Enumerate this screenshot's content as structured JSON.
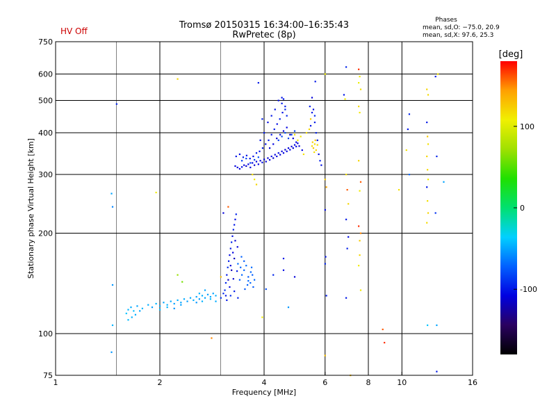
{
  "chart_data": {
    "type": "scatter",
    "title": "Tromsø 20150315 16:34:00–16:35:43",
    "subtitle": "RwPretec (8p)",
    "status_label": "HV Off",
    "stats": {
      "heading": "Phases",
      "line_o": "mean, sd,O: −75.0, 20.9",
      "line_x": "mean, sd,X:  97.6, 25.3"
    },
    "xlabel": "Frequency [MHz]",
    "ylabel": "Stationary phase Virtual Height [km]",
    "x_scale": "log2",
    "y_scale": "log",
    "xlim": [
      1,
      16
    ],
    "ylim": [
      75,
      750
    ],
    "x_ticks": [
      1,
      2,
      4,
      6,
      8,
      10,
      16
    ],
    "y_ticks": [
      75,
      100,
      200,
      300,
      400,
      500,
      600,
      750
    ],
    "grid": true,
    "colorbar": {
      "label": "[deg]",
      "range": [
        -180,
        180
      ],
      "ticks": [
        100,
        0,
        -100
      ],
      "colors": [
        "#000000",
        "#2a0060",
        "#0000e0",
        "#0060ff",
        "#00d0ff",
        "#00e070",
        "#20e000",
        "#a0e000",
        "#f0f000",
        "#ffa000",
        "#ff0000"
      ]
    },
    "points": [
      [
        1.5,
        488,
        -95
      ],
      [
        1.45,
        263,
        -50
      ],
      [
        1.46,
        240,
        -60
      ],
      [
        1.46,
        140,
        -55
      ],
      [
        1.46,
        106,
        -45
      ],
      [
        1.45,
        88,
        -55
      ],
      [
        1.6,
        115,
        -40
      ],
      [
        1.62,
        118,
        -45
      ],
      [
        1.65,
        120,
        -48
      ],
      [
        1.68,
        117,
        -42
      ],
      [
        1.72,
        121,
        -50
      ],
      [
        1.78,
        119,
        -44
      ],
      [
        1.85,
        122,
        -47
      ],
      [
        1.9,
        120,
        -52
      ],
      [
        1.95,
        123,
        -45
      ],
      [
        2.0,
        121,
        -48
      ],
      [
        2.05,
        124,
        -50
      ],
      [
        2.1,
        122,
        -46
      ],
      [
        2.15,
        125,
        -49
      ],
      [
        2.2,
        123,
        -51
      ],
      [
        2.25,
        126,
        -47
      ],
      [
        2.3,
        124,
        -50
      ],
      [
        2.35,
        127,
        -48
      ],
      [
        2.4,
        125,
        -52
      ],
      [
        2.45,
        128,
        -49
      ],
      [
        2.5,
        126,
        -47
      ],
      [
        2.55,
        129,
        -50
      ],
      [
        2.6,
        127,
        -53
      ],
      [
        2.65,
        130,
        -48
      ],
      [
        2.7,
        128,
        -50
      ],
      [
        2.75,
        131,
        -52
      ],
      [
        2.8,
        129,
        -49
      ],
      [
        2.85,
        132,
        -51
      ],
      [
        2.9,
        130,
        -47
      ],
      [
        2.55,
        124,
        -55
      ],
      [
        2.6,
        132,
        -45
      ],
      [
        2.65,
        125,
        -46
      ],
      [
        2.7,
        135,
        -50
      ],
      [
        2.8,
        127,
        -44
      ],
      [
        2.9,
        125,
        -48
      ],
      [
        2.0,
        118,
        -42
      ],
      [
        2.2,
        119,
        -55
      ],
      [
        2.3,
        122,
        -52
      ],
      [
        2.1,
        120,
        -45
      ],
      [
        1.7,
        114,
        -48
      ],
      [
        1.75,
        117,
        -50
      ],
      [
        1.62,
        110,
        -43
      ],
      [
        1.66,
        112,
        -46
      ],
      [
        2.25,
        580,
        120
      ],
      [
        1.95,
        265,
        110
      ],
      [
        2.82,
        97,
        150
      ],
      [
        3.05,
        230,
        -110
      ],
      [
        3.15,
        240,
        160
      ],
      [
        3.0,
        148,
        130
      ],
      [
        2.32,
        143,
        60
      ],
      [
        2.25,
        150,
        70
      ],
      [
        3.08,
        135,
        -90
      ],
      [
        3.1,
        142,
        -95
      ],
      [
        3.12,
        150,
        -100
      ],
      [
        3.14,
        158,
        -92
      ],
      [
        3.16,
        165,
        -98
      ],
      [
        3.18,
        172,
        -105
      ],
      [
        3.2,
        180,
        -100
      ],
      [
        3.22,
        188,
        -95
      ],
      [
        3.24,
        196,
        -102
      ],
      [
        3.26,
        205,
        -98
      ],
      [
        3.28,
        212,
        -100
      ],
      [
        3.3,
        220,
        -104
      ],
      [
        3.32,
        228,
        -96
      ],
      [
        3.2,
        160,
        -110
      ],
      [
        3.25,
        175,
        -108
      ],
      [
        3.3,
        190,
        -112
      ],
      [
        3.15,
        145,
        -115
      ],
      [
        3.22,
        155,
        -120
      ],
      [
        3.28,
        168,
        -118
      ],
      [
        3.35,
        182,
        -110
      ],
      [
        3.1,
        130,
        -100
      ],
      [
        3.18,
        138,
        -105
      ],
      [
        3.26,
        146,
        -112
      ],
      [
        3.34,
        154,
        -100
      ],
      [
        3.4,
        145,
        -75
      ],
      [
        3.45,
        150,
        -70
      ],
      [
        3.5,
        155,
        -72
      ],
      [
        3.55,
        160,
        -68
      ],
      [
        3.6,
        148,
        -74
      ],
      [
        3.65,
        142,
        -70
      ],
      [
        3.7,
        150,
        -73
      ],
      [
        3.75,
        145,
        -69
      ],
      [
        3.42,
        158,
        -71
      ],
      [
        3.5,
        165,
        -75
      ],
      [
        3.58,
        140,
        -72
      ],
      [
        3.66,
        153,
        -70
      ],
      [
        3.72,
        138,
        -74
      ],
      [
        3.36,
        162,
        -68
      ],
      [
        3.44,
        170,
        -72
      ],
      [
        3.52,
        136,
        -75
      ],
      [
        3.6,
        144,
        -70
      ],
      [
        3.68,
        158,
        -68
      ],
      [
        3.0,
        128,
        -90
      ],
      [
        3.05,
        132,
        -95
      ],
      [
        3.12,
        126,
        -100
      ],
      [
        3.2,
        130,
        -92
      ],
      [
        3.28,
        134,
        -98
      ],
      [
        3.36,
        128,
        -96
      ],
      [
        3.3,
        318,
        -110
      ],
      [
        3.35,
        315,
        -108
      ],
      [
        3.4,
        312,
        -112
      ],
      [
        3.45,
        316,
        -105
      ],
      [
        3.5,
        320,
        -110
      ],
      [
        3.55,
        318,
        -114
      ],
      [
        3.6,
        322,
        -108
      ],
      [
        3.65,
        315,
        -110
      ],
      [
        3.7,
        325,
        -106
      ],
      [
        3.75,
        320,
        -112
      ],
      [
        3.8,
        328,
        -110
      ],
      [
        3.85,
        322,
        -108
      ],
      [
        3.9,
        330,
        -112
      ],
      [
        3.95,
        326,
        -105
      ],
      [
        4.0,
        333,
        -110
      ],
      [
        4.05,
        328,
        -108
      ],
      [
        4.1,
        336,
        -112
      ],
      [
        4.15,
        332,
        -110
      ],
      [
        4.2,
        340,
        -106
      ],
      [
        4.25,
        336,
        -112
      ],
      [
        4.3,
        344,
        -108
      ],
      [
        4.35,
        340,
        -110
      ],
      [
        4.4,
        348,
        -105
      ],
      [
        4.45,
        344,
        -112
      ],
      [
        4.5,
        352,
        -110
      ],
      [
        4.55,
        348,
        -108
      ],
      [
        4.6,
        356,
        -112
      ],
      [
        4.65,
        352,
        -106
      ],
      [
        4.7,
        360,
        -110
      ],
      [
        4.75,
        356,
        -108
      ],
      [
        4.8,
        364,
        -112
      ],
      [
        4.85,
        360,
        -110
      ],
      [
        4.9,
        368,
        -105
      ],
      [
        4.95,
        364,
        -108
      ],
      [
        5.0,
        372,
        -112
      ],
      [
        3.32,
        340,
        -100
      ],
      [
        3.4,
        345,
        -105
      ],
      [
        3.48,
        338,
        -98
      ],
      [
        3.56,
        342,
        -102
      ],
      [
        3.64,
        335,
        -100
      ],
      [
        3.72,
        340,
        -104
      ],
      [
        3.8,
        348,
        -98
      ],
      [
        3.88,
        352,
        -102
      ],
      [
        3.96,
        360,
        -100
      ],
      [
        4.04,
        370,
        -104
      ],
      [
        4.12,
        380,
        -98
      ],
      [
        4.2,
        395,
        -102
      ],
      [
        4.28,
        410,
        -100
      ],
      [
        4.36,
        425,
        -104
      ],
      [
        4.44,
        440,
        -98
      ],
      [
        4.52,
        460,
        -102
      ],
      [
        4.6,
        480,
        -100
      ],
      [
        4.4,
        500,
        -104
      ],
      [
        4.5,
        490,
        -98
      ],
      [
        4.3,
        470,
        -102
      ],
      [
        4.2,
        450,
        -100
      ],
      [
        4.1,
        430,
        -104
      ],
      [
        4.0,
        400,
        -98
      ],
      [
        3.9,
        380,
        -102
      ],
      [
        4.15,
        360,
        -110
      ],
      [
        4.25,
        370,
        -108
      ],
      [
        4.35,
        385,
        -112
      ],
      [
        4.45,
        395,
        -105
      ],
      [
        4.55,
        405,
        -110
      ],
      [
        4.65,
        415,
        -108
      ],
      [
        4.75,
        395,
        -112
      ],
      [
        4.85,
        385,
        -110
      ],
      [
        4.95,
        375,
        -106
      ],
      [
        5.05,
        365,
        -112
      ],
      [
        5.15,
        355,
        -108
      ],
      [
        4.4,
        380,
        -85
      ],
      [
        4.5,
        390,
        -82
      ],
      [
        4.6,
        400,
        -80
      ],
      [
        4.7,
        385,
        -84
      ],
      [
        4.8,
        395,
        -86
      ],
      [
        4.9,
        405,
        -82
      ],
      [
        3.45,
        330,
        -85
      ],
      [
        3.55,
        335,
        -82
      ],
      [
        3.65,
        325,
        -86
      ],
      [
        3.75,
        332,
        -84
      ],
      [
        3.85,
        338,
        -80
      ],
      [
        5.5,
        365,
        120
      ],
      [
        5.55,
        360,
        125
      ],
      [
        5.6,
        370,
        115
      ],
      [
        5.65,
        355,
        120
      ],
      [
        5.7,
        368,
        118
      ],
      [
        5.52,
        375,
        122
      ],
      [
        5.58,
        350,
        116
      ],
      [
        5.62,
        380,
        124
      ],
      [
        5.3,
        400,
        118
      ],
      [
        5.4,
        410,
        120
      ],
      [
        5.2,
        345,
        115
      ],
      [
        5.0,
        380,
        110
      ],
      [
        4.9,
        395,
        115
      ],
      [
        5.1,
        390,
        112
      ],
      [
        5.45,
        440,
        125
      ],
      [
        5.5,
        460,
        -100
      ],
      [
        5.55,
        470,
        -105
      ],
      [
        5.6,
        430,
        -98
      ],
      [
        5.45,
        420,
        -102
      ],
      [
        5.65,
        400,
        -96
      ],
      [
        5.7,
        380,
        -100
      ],
      [
        5.75,
        345,
        -104
      ],
      [
        5.8,
        330,
        -98
      ],
      [
        5.85,
        320,
        -102
      ],
      [
        5.5,
        510,
        -110
      ],
      [
        5.62,
        570,
        -100
      ],
      [
        5.6,
        450,
        -95
      ],
      [
        5.42,
        480,
        -98
      ],
      [
        3.85,
        565,
        -100
      ],
      [
        3.95,
        440,
        -98
      ],
      [
        4.6,
        470,
        -95
      ],
      [
        4.5,
        510,
        -102
      ],
      [
        4.55,
        505,
        -100
      ],
      [
        4.65,
        450,
        -96
      ],
      [
        3.75,
        290,
        110
      ],
      [
        3.8,
        280,
        120
      ],
      [
        3.7,
        300,
        115
      ],
      [
        3.95,
        112,
        110
      ],
      [
        4.05,
        136,
        -80
      ],
      [
        4.55,
        168,
        -100
      ],
      [
        4.55,
        155,
        -105
      ],
      [
        4.25,
        150,
        -95
      ],
      [
        4.9,
        148,
        -110
      ],
      [
        4.7,
        120,
        -55
      ],
      [
        6.0,
        600,
        110
      ],
      [
        6.0,
        290,
        125
      ],
      [
        6.05,
        275,
        140
      ],
      [
        6.0,
        235,
        -105
      ],
      [
        6.02,
        170,
        -100
      ],
      [
        6.0,
        162,
        -95
      ],
      [
        6.05,
        130,
        -98
      ],
      [
        6.0,
        86,
        130
      ],
      [
        6.9,
        630,
        -95
      ],
      [
        6.8,
        520,
        -100
      ],
      [
        6.85,
        505,
        110
      ],
      [
        6.9,
        300,
        115
      ],
      [
        6.95,
        270,
        160
      ],
      [
        7.0,
        245,
        120
      ],
      [
        6.9,
        220,
        -100
      ],
      [
        7.0,
        195,
        -104
      ],
      [
        6.95,
        180,
        -98
      ],
      [
        6.9,
        128,
        -100
      ],
      [
        7.1,
        75,
        130
      ],
      [
        7.5,
        620,
        170
      ],
      [
        7.55,
        590,
        110
      ],
      [
        7.5,
        565,
        105
      ],
      [
        7.6,
        540,
        115
      ],
      [
        7.5,
        480,
        118
      ],
      [
        7.55,
        460,
        112
      ],
      [
        7.5,
        330,
        120
      ],
      [
        7.6,
        285,
        160
      ],
      [
        7.55,
        268,
        110
      ],
      [
        7.5,
        210,
        170
      ],
      [
        7.6,
        200,
        150
      ],
      [
        7.55,
        172,
        120
      ],
      [
        7.5,
        160,
        110
      ],
      [
        7.6,
        135,
        112
      ],
      [
        7.55,
        190,
        125
      ],
      [
        8.8,
        103,
        160
      ],
      [
        8.9,
        94,
        170
      ],
      [
        9.8,
        270,
        115
      ],
      [
        10.5,
        455,
        -95
      ],
      [
        10.4,
        410,
        -100
      ],
      [
        10.3,
        355,
        115
      ],
      [
        10.5,
        300,
        -70
      ],
      [
        11.8,
        540,
        120
      ],
      [
        11.9,
        520,
        118
      ],
      [
        11.8,
        430,
        -100
      ],
      [
        11.85,
        390,
        125
      ],
      [
        11.9,
        370,
        115
      ],
      [
        11.8,
        340,
        120
      ],
      [
        11.85,
        310,
        118
      ],
      [
        11.9,
        290,
        110
      ],
      [
        11.8,
        275,
        -100
      ],
      [
        11.85,
        250,
        115
      ],
      [
        11.9,
        230,
        120
      ],
      [
        11.8,
        215,
        118
      ],
      [
        11.85,
        106,
        -40
      ],
      [
        12.5,
        590,
        -100
      ],
      [
        12.6,
        340,
        -95
      ],
      [
        12.5,
        230,
        -90
      ],
      [
        12.6,
        106,
        -50
      ],
      [
        12.6,
        77,
        -100
      ],
      [
        13.2,
        285,
        -50
      ],
      [
        12.7,
        600,
        115
      ]
    ]
  }
}
